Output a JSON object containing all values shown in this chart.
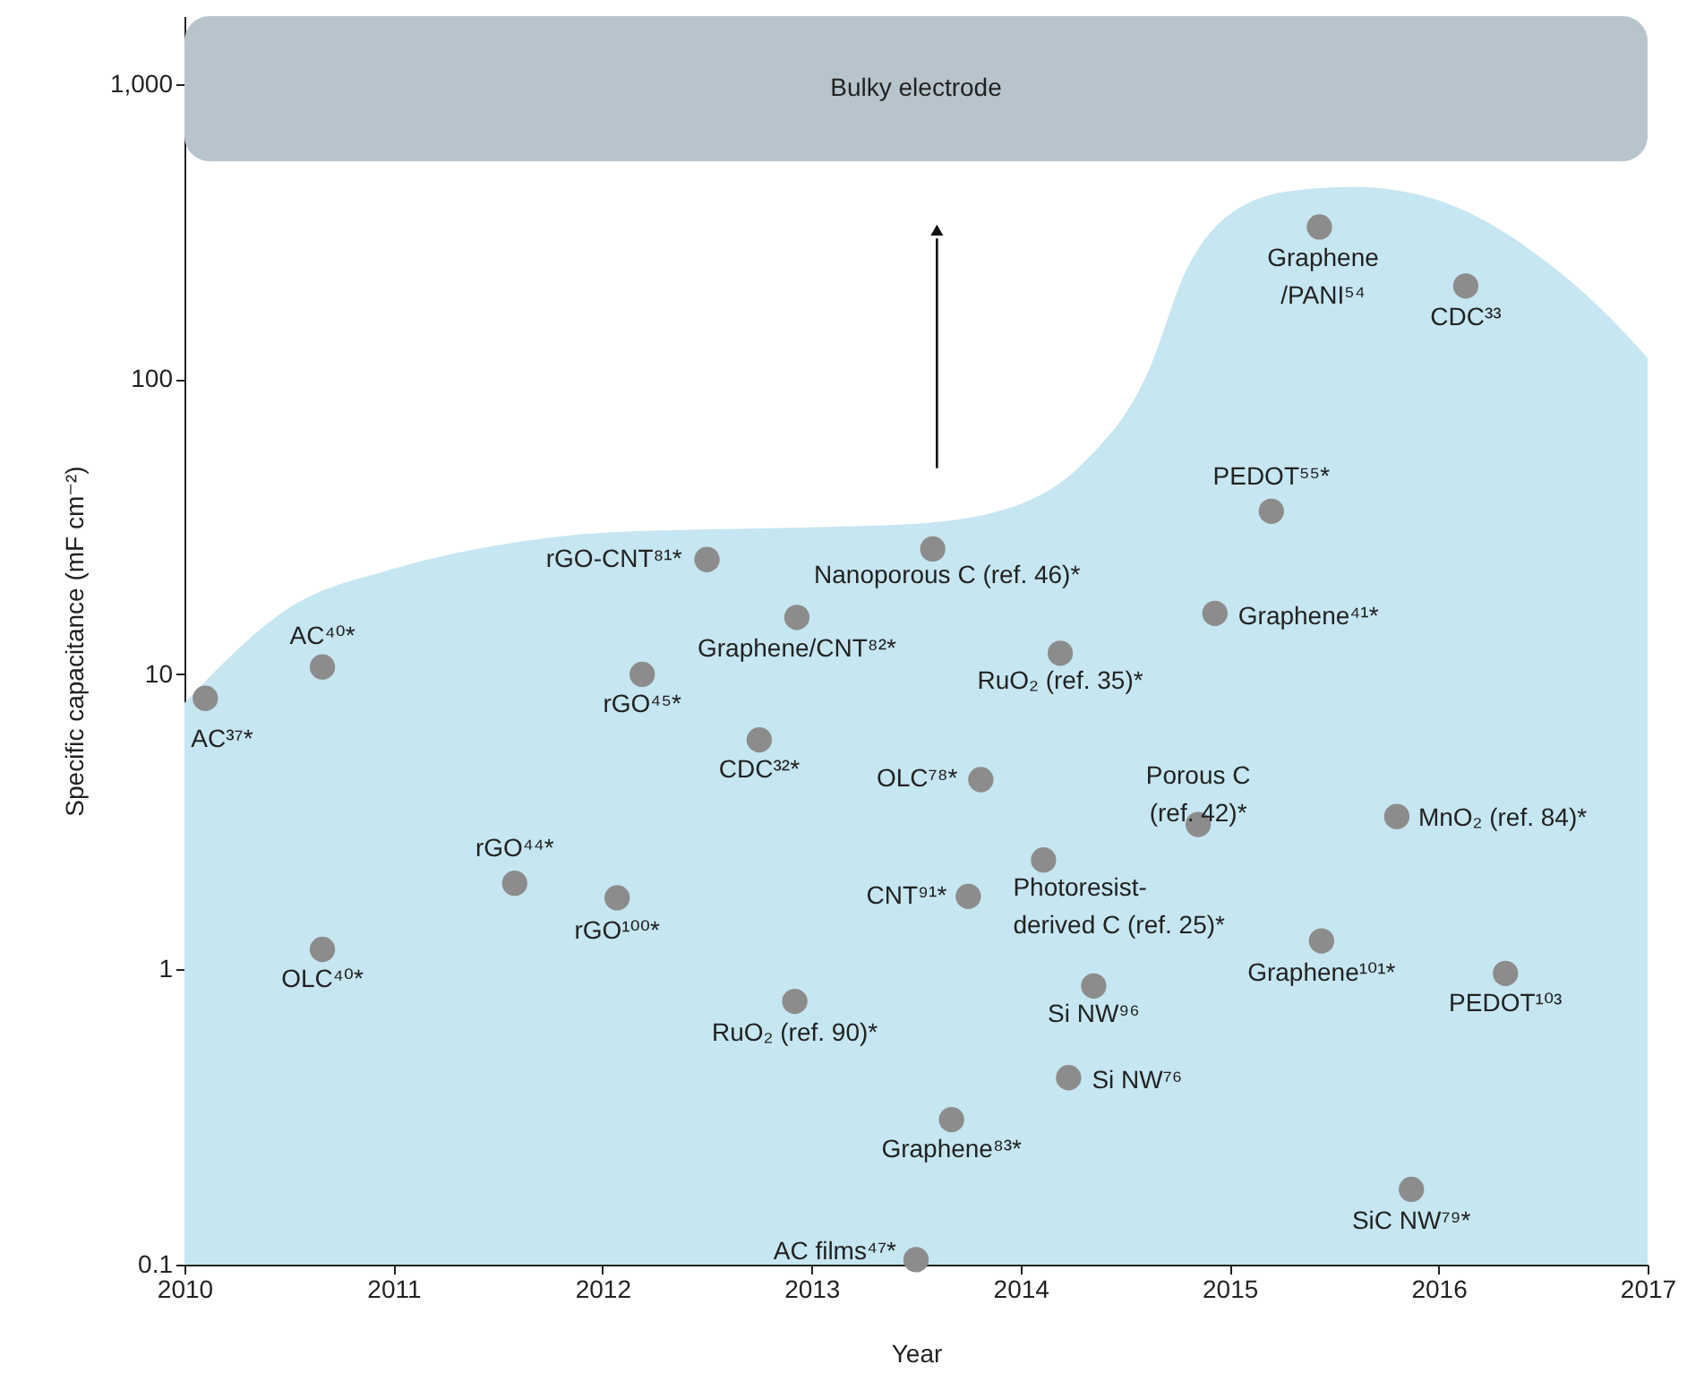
{
  "chart_data": {
    "type": "scatter",
    "xlabel": "Year",
    "ylabel": "Specific capacitance (mF cm⁻²)",
    "xlim": [
      2010,
      2017
    ],
    "xticks": [
      2010,
      2011,
      2012,
      2013,
      2014,
      2015,
      2016,
      2017
    ],
    "ylim": [
      0.1,
      1700
    ],
    "yticks": [
      0.1,
      1,
      10,
      100,
      {
        "value": 1000,
        "label": "1,000"
      }
    ],
    "log": "y",
    "grid": false,
    "bands": [
      {
        "axis": "y",
        "from": 548,
        "to": 1700,
        "label": "Bulky electrode",
        "color": "#b8c4cc"
      }
    ],
    "series": [
      {
        "type": "area",
        "color": "#c6e6f1",
        "x": [
          2010,
          2010.5,
          2011,
          2011.5,
          2012,
          2012.5,
          2013,
          2013.5,
          2014,
          2014.3,
          2014.6,
          2014.8,
          2015,
          2015.3,
          2015.6,
          2016,
          2016.5,
          2016.8,
          2017
        ],
        "values": [
          8,
          16.8,
          22.8,
          27.4,
          30.2,
          31,
          31.5,
          32.4,
          37.8,
          52,
          102,
          240,
          362,
          435,
          448,
          404,
          255,
          167,
          118
        ]
      },
      {
        "color": "#8c8c8c",
        "marker": "circle",
        "x": [
          2010.1,
          2010.66,
          2010.66,
          2011.58,
          2012.07,
          2012.19,
          2012.5,
          2012.93,
          2012.75,
          2012.92,
          2013.5,
          2013.67,
          2013.58,
          2013.81,
          2013.75,
          2014.11,
          2014.19,
          2014.35,
          2014.23,
          2014.85,
          2014.93,
          2015.2,
          2015.43,
          2015.44,
          2015.8,
          2015.87,
          2016.13,
          2016.32
        ],
        "values": [
          8.3,
          10.6,
          1.17,
          1.96,
          1.75,
          10,
          24.5,
          15.6,
          6.0,
          0.78,
          0.104,
          0.31,
          26.6,
          4.4,
          1.77,
          2.35,
          11.8,
          0.88,
          0.43,
          3.1,
          16.1,
          35.7,
          328,
          1.25,
          3.3,
          0.18,
          207,
          0.97
        ]
      }
    ],
    "annotations": [
      {
        "text": "AC³⁷*",
        "x": 2010.1,
        "y": 8.3
      },
      {
        "text": "AC⁴⁰*",
        "x": 2010.66,
        "y": 10.6
      },
      {
        "text": "OLC⁴⁰*",
        "x": 2010.66,
        "y": 1.17
      },
      {
        "text": "rGO⁴⁴*",
        "x": 2011.58,
        "y": 1.96
      },
      {
        "text": "rGO¹⁰⁰*",
        "x": 2012.07,
        "y": 1.75
      },
      {
        "text": "rGO⁴⁵*",
        "x": 2012.19,
        "y": 10
      },
      {
        "text": "rGO-CNT⁸¹*",
        "x": 2012.5,
        "y": 24.5
      },
      {
        "text": "Graphene/CNT⁸²*",
        "x": 2012.93,
        "y": 15.6
      },
      {
        "text": "CDC³²*",
        "x": 2012.75,
        "y": 6.0
      },
      {
        "text": "RuO₂ (ref. 90)*",
        "x": 2012.92,
        "y": 0.78
      },
      {
        "text": "AC films⁴⁷*",
        "x": 2013.5,
        "y": 0.104
      },
      {
        "text": "Graphene⁸³*",
        "x": 2013.67,
        "y": 0.31
      },
      {
        "text": "Nanoporous C (ref. 46)*",
        "x": 2013.58,
        "y": 26.6
      },
      {
        "text": "OLC⁷⁸*",
        "x": 2013.81,
        "y": 4.4
      },
      {
        "text": "CNT⁹¹*",
        "x": 2013.75,
        "y": 1.77
      },
      {
        "text": "Photoresist-\nderived C (ref. 25)*",
        "x": 2014.11,
        "y": 2.35
      },
      {
        "text": "RuO₂ (ref. 35)*",
        "x": 2014.19,
        "y": 11.8
      },
      {
        "text": "Si NW⁹⁶",
        "x": 2014.35,
        "y": 0.88
      },
      {
        "text": "Si NW⁷⁶",
        "x": 2014.23,
        "y": 0.43
      },
      {
        "text": "Porous C\n(ref. 42)*",
        "x": 2014.85,
        "y": 3.1
      },
      {
        "text": "Graphene⁴¹*",
        "x": 2014.93,
        "y": 16.1
      },
      {
        "text": "PEDOT⁵⁵*",
        "x": 2015.2,
        "y": 35.7
      },
      {
        "text": "Graphene\n/PANI⁵⁴",
        "x": 2015.43,
        "y": 328
      },
      {
        "text": "Graphene¹⁰¹*",
        "x": 2015.44,
        "y": 1.25
      },
      {
        "text": "MnO₂ (ref. 84)*",
        "x": 2015.8,
        "y": 3.3
      },
      {
        "text": "SiC NW⁷⁹*",
        "x": 2015.87,
        "y": 0.18
      },
      {
        "text": "CDC³³",
        "x": 2016.13,
        "y": 207
      },
      {
        "text": "PEDOT¹⁰³",
        "x": 2016.32,
        "y": 0.97
      }
    ]
  }
}
